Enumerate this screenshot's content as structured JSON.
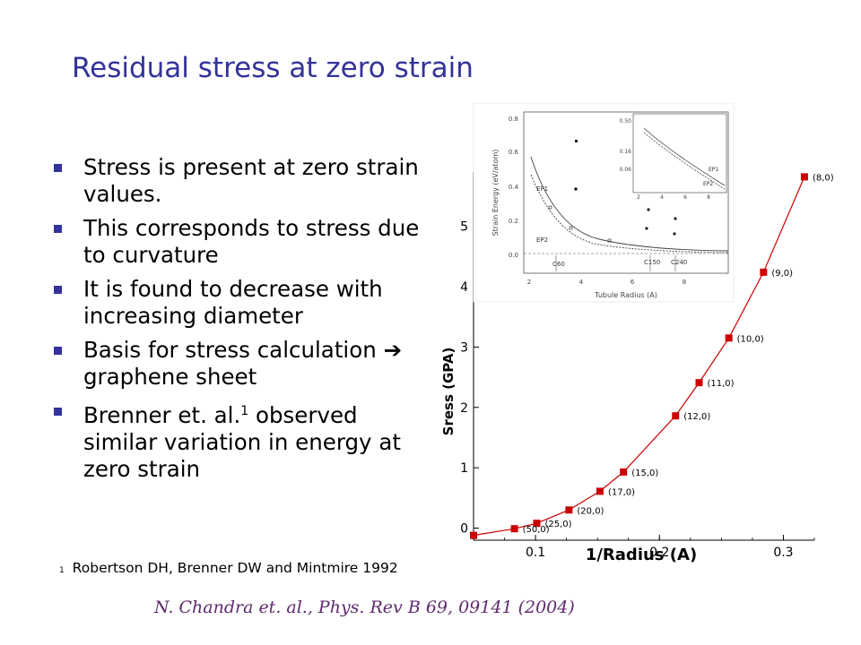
{
  "title": "Residual stress at zero strain",
  "bullets": [
    {
      "text": "Stress is present at zero strain values."
    },
    {
      "text": "This corresponds to stress due to curvature"
    },
    {
      "text": "It is found to decrease with increasing diameter"
    },
    {
      "text": "Basis for stress calculation",
      "arrow": "➔",
      "text_after": "graphene sheet"
    },
    {
      "text": "Brenner et. al.",
      "sup": "1",
      "text_after": "observed similar variation in energy at zero strain"
    }
  ],
  "footnote": {
    "num": "1",
    "text": "Robertson DH, Brenner DW and Mintmire 1992"
  },
  "citation": "N. Chandra et. al.,  Phys. Rev B  69, 09141 (2004)",
  "colors": {
    "title": "#33339a",
    "bullet": "#3333a0",
    "citation": "#5e2a6e",
    "series": "#cc0000"
  },
  "chart_data": [
    {
      "type": "line",
      "xlabel": "1/Radius (A)",
      "ylabel": "Sress (GPA)",
      "xlim": [
        0.05,
        0.325
      ],
      "ylim": [
        -0.2,
        5.9
      ],
      "xticks": [
        "0.1",
        "0.2",
        "0.3"
      ],
      "yticks": [
        "0",
        "1",
        "2",
        "3",
        "4",
        "5"
      ],
      "series": [
        {
          "x": [
            0.05,
            0.083,
            0.101,
            0.127,
            0.152,
            0.171,
            0.213,
            0.232,
            0.256,
            0.284,
            0.317
          ],
          "y": [
            -0.12,
            -0.01,
            0.08,
            0.3,
            0.61,
            0.93,
            1.86,
            2.41,
            3.15,
            4.24,
            5.82
          ],
          "labels": [
            "",
            "(50,0)",
            "(25,0)",
            "(20,0)",
            "(17,0)",
            "(15,0)",
            "(12,0)",
            "(11,0)",
            "(10,0)",
            "(9,0)",
            "(8,0)"
          ]
        }
      ]
    },
    {
      "type": "line",
      "xlabel": "Tubule Radius (A)",
      "ylabel": "Strain Energy (eV/atom)",
      "yticks": [
        "0.0",
        "0.2",
        "0.4",
        "0.6",
        "0.8"
      ],
      "xticks": [
        "2",
        "4",
        "6",
        "8"
      ],
      "labels": [
        "EP1",
        "EP2",
        "C60",
        "C150",
        "C240"
      ],
      "inset": {
        "yticks": [
          "0.50",
          "0.16",
          "0.06"
        ],
        "xticks": [
          "2",
          "4",
          "6",
          "8"
        ],
        "labels": [
          "EP1",
          "EP2"
        ]
      }
    }
  ]
}
